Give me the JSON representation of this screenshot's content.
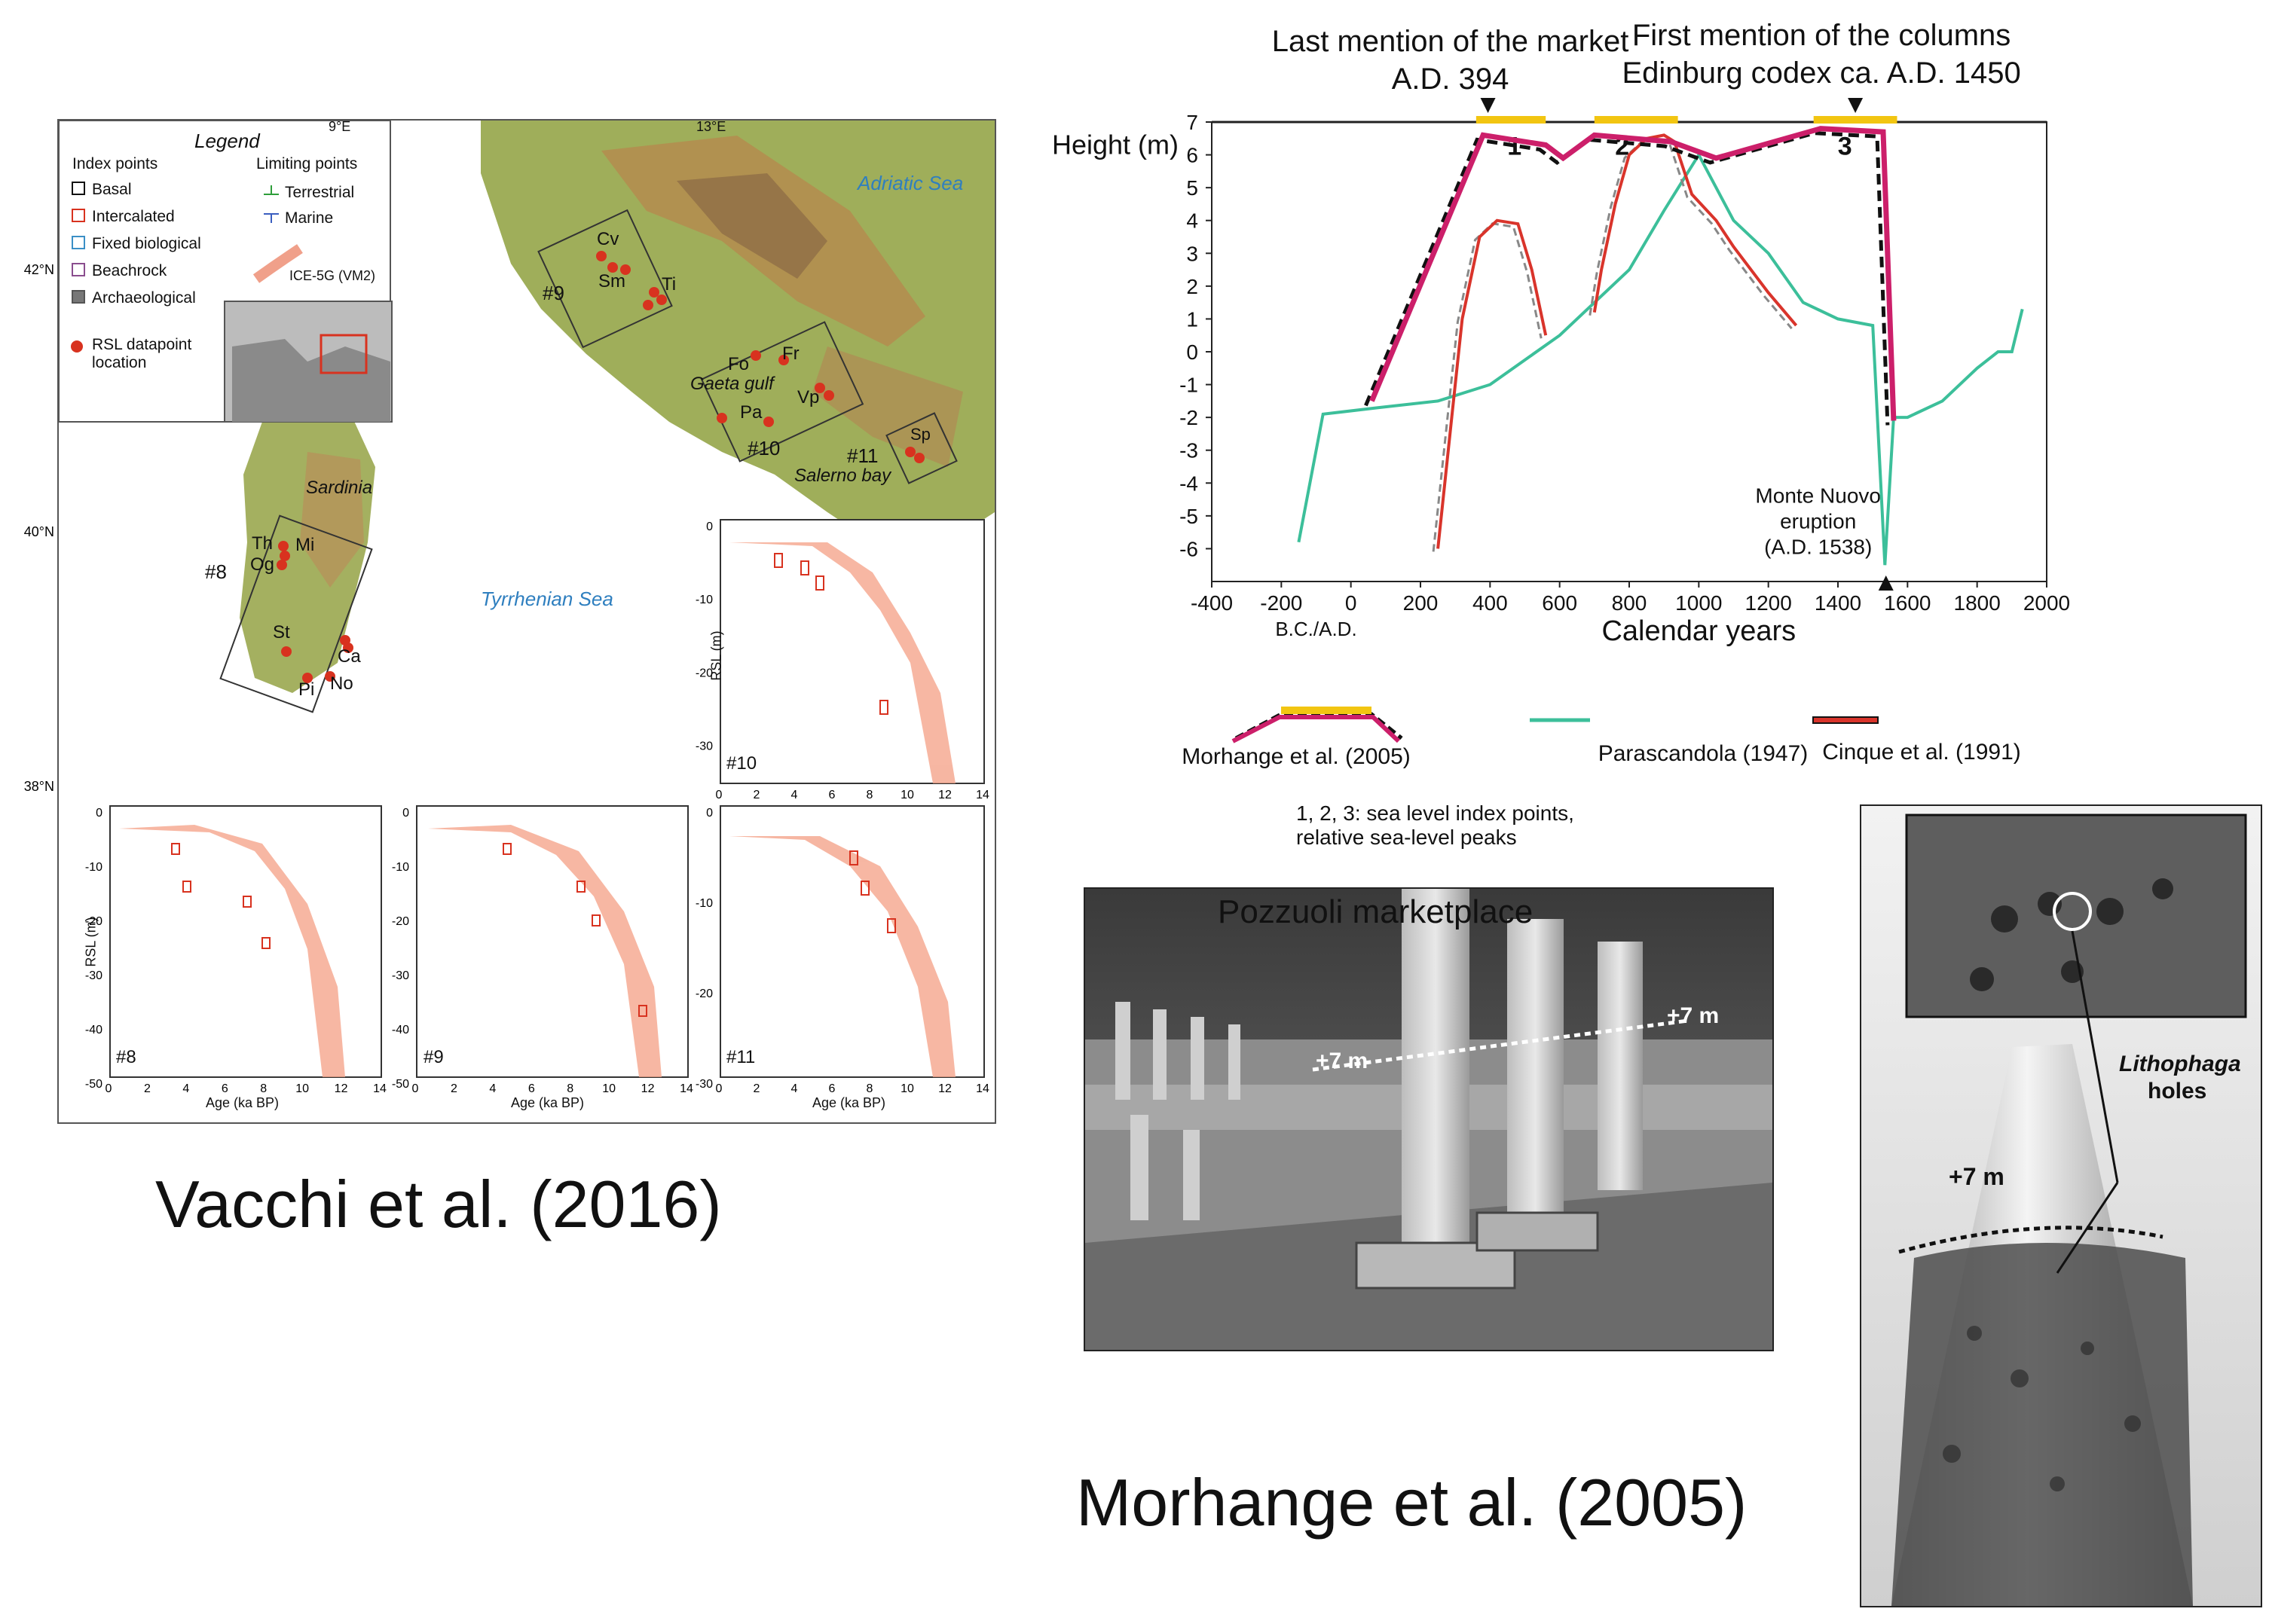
{
  "left_figure": {
    "caption": "Vacchi et al. (2016)",
    "lon_labels": [
      "9°E",
      "13°E"
    ],
    "lat_labels": [
      "42°N",
      "40°N",
      "38°N"
    ],
    "legend": {
      "title": "Legend",
      "index_points_title": "Index points",
      "limiting_points_title": "Limiting points",
      "items": [
        "Basal",
        "Intercalated",
        "Fixed biological",
        "Beachrock",
        "Archaeological"
      ],
      "limiting_items": [
        "Terrestrial",
        "Marine"
      ],
      "model_label": "ICE-5G (VM2)",
      "rsl_label_1": "RSL datapoint",
      "rsl_label_2": "location"
    },
    "sea_labels": [
      "Adriatic Sea",
      "Tyrrhenian Sea",
      "Sardinia"
    ],
    "place_labels": [
      "Cv",
      "Sm",
      "Ti",
      "Fo",
      "Fr",
      "Gaeta gulf",
      "Vp",
      "Pa",
      "Sp",
      "Salerno bay",
      "Th",
      "Mi",
      "Og",
      "St",
      "Ca",
      "Pi",
      "No"
    ],
    "region_labels": [
      "#9",
      "#10",
      "#11",
      "#8"
    ],
    "subplots": {
      "ylabel": "RSL (m)",
      "xlabel": "Age (ka BP)",
      "xticks": [
        "0",
        "2",
        "4",
        "6",
        "8",
        "10",
        "12",
        "14"
      ],
      "yticks_low": [
        "0",
        "-10",
        "-20",
        "-30",
        "-40",
        "-50"
      ],
      "yticks_top": [
        "0",
        "-10",
        "-20",
        "-30"
      ],
      "names": [
        "#10",
        "#8",
        "#9",
        "#11"
      ]
    }
  },
  "chart_data": {
    "type": "line",
    "ylabel": "Height (m)",
    "xlabel": "Calendar years",
    "x_sublabel": "B.C./A.D.",
    "xlim": [
      -400,
      2000
    ],
    "ylim": [
      -7,
      7
    ],
    "xticks": [
      -400,
      -200,
      0,
      200,
      400,
      600,
      800,
      1000,
      1200,
      1400,
      1600,
      1800,
      2000
    ],
    "xtick_labels": [
      "-400",
      "-200",
      "0",
      "200",
      "400",
      "600",
      "800",
      "1000",
      "1200",
      "1400",
      "1600",
      "1800",
      "2000"
    ],
    "yticks": [
      7,
      6,
      5,
      4,
      3,
      2,
      1,
      0,
      -1,
      -2,
      -3,
      -4,
      -5,
      -6
    ],
    "ytick_labels": [
      "7",
      "6",
      "5",
      "4",
      "3",
      "2",
      "1",
      "0",
      "-1",
      "-2",
      "-3",
      "-4",
      "-5",
      "-6"
    ],
    "annotations": [
      {
        "text_1": "Last mention of the market",
        "text_2": "A.D. 394",
        "x": 394
      },
      {
        "text_1": "First mention of the columns",
        "text_2": "Edinburg codex ca. A.D. 1450",
        "x": 1450
      },
      {
        "text_1": "Monte Nuovo",
        "text_2": "eruption",
        "text_3": "(A.D. 1538)",
        "x": 1538
      }
    ],
    "peak_labels": [
      "1",
      "2",
      "3"
    ],
    "series": [
      {
        "name": "Morhange et al. (2005)",
        "color": "#cc1f6a",
        "x": [
          60,
          380,
          560,
          610,
          700,
          920,
          1050,
          1350,
          1530,
          1560
        ],
        "y": [
          -1.5,
          6.6,
          6.3,
          5.9,
          6.6,
          6.4,
          5.9,
          6.8,
          6.7,
          -2.1
        ]
      },
      {
        "name": "Parascandola (1947)",
        "color": "#3cbf9a",
        "x": [
          -150,
          -80,
          80,
          250,
          400,
          600,
          800,
          900,
          1000,
          1100,
          1200,
          1300,
          1400,
          1500,
          1535,
          1560,
          1600,
          1700,
          1800,
          1860,
          1900,
          1930
        ],
        "y": [
          -5.8,
          -1.9,
          -1.7,
          -1.5,
          -1.0,
          0.5,
          2.5,
          4.3,
          6.0,
          4.0,
          3.0,
          1.5,
          1.0,
          0.8,
          -6.5,
          -2.0,
          -2.0,
          -1.5,
          -0.5,
          0.0,
          0.0,
          1.3
        ]
      },
      {
        "name": "Cinque et al. (1991)",
        "color": "#d9342b",
        "segments": [
          {
            "x": [
              250,
              290,
              320,
              370,
              420,
              480,
              520,
              560
            ],
            "y": [
              -6.0,
              -2.0,
              1.0,
              3.5,
              4.0,
              3.9,
              2.5,
              0.5
            ]
          },
          {
            "x": [
              700,
              720,
              760,
              800,
              850,
              900,
              930
            ],
            "y": [
              1.2,
              2.5,
              4.5,
              6.0,
              6.5,
              6.6,
              6.4
            ]
          },
          {
            "x": [
              930,
              980,
              1050,
              1100,
              1200,
              1280
            ],
            "y": [
              6.4,
              4.8,
              4.0,
              3.2,
              1.8,
              0.8
            ]
          }
        ]
      }
    ],
    "legend": [
      "Morhange et al. (2005)",
      "Parascandola (1947)",
      "Cinque et al. (1991)"
    ],
    "note_1": "1, 2, 3: sea level index points,",
    "note_2": "relative sea-level peaks",
    "caption": "Morhange et al. (2005)"
  },
  "photos": {
    "market_label": "Pozzuoli marketplace",
    "market_marker": "+7 m",
    "column_marker": "+7 m",
    "lithophaga_1": "Lithophaga",
    "lithophaga_2": "holes"
  }
}
